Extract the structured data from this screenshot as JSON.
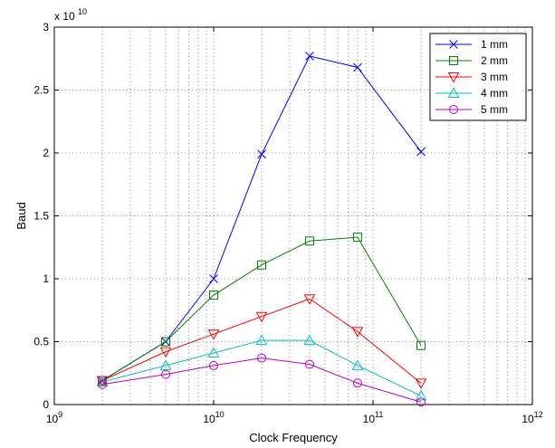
{
  "chart_data": {
    "type": "line",
    "title": "",
    "xlabel": "Clock Frequency",
    "ylabel": "Baud",
    "x_scale": "log",
    "y_multiplier_label": {
      "base": "x 10",
      "exponent": "10"
    },
    "xlim": [
      1000000000.0,
      1000000000000.0
    ],
    "ylim": [
      0,
      30000000000.0
    ],
    "x_ticks": [
      {
        "value": 1000000000.0,
        "base": "10",
        "exp": "9"
      },
      {
        "value": 10000000000.0,
        "base": "10",
        "exp": "10"
      },
      {
        "value": 100000000000.0,
        "base": "10",
        "exp": "11"
      },
      {
        "value": 1000000000000.0,
        "base": "10",
        "exp": "12"
      }
    ],
    "y_ticks": [
      {
        "value": 0,
        "label": "0"
      },
      {
        "value": 5000000000.0,
        "label": "0.5"
      },
      {
        "value": 10000000000.0,
        "label": "1"
      },
      {
        "value": 15000000000.0,
        "label": "1.5"
      },
      {
        "value": 20000000000.0,
        "label": "2"
      },
      {
        "value": 25000000000.0,
        "label": "2.5"
      },
      {
        "value": 30000000000.0,
        "label": "3"
      }
    ],
    "grid": true,
    "legend_position": "top-right",
    "x": [
      2000000000.0,
      5000000000.0,
      10000000000.0,
      20000000000.0,
      40000000000.0,
      80000000000.0,
      200000000000.0
    ],
    "series": [
      {
        "name": "1 mm",
        "color": "#0000ff",
        "marker": "x",
        "values": [
          1900000000.0,
          5000000000.0,
          10000000000.0,
          19900000000.0,
          27700000000.0,
          26800000000.0,
          20100000000.0
        ]
      },
      {
        "name": "2 mm",
        "color": "#008000",
        "marker": "square",
        "values": [
          1900000000.0,
          5000000000.0,
          8700000000.0,
          11100000000.0,
          13000000000.0,
          13300000000.0,
          4700000000.0
        ]
      },
      {
        "name": "3 mm",
        "color": "#ff0000",
        "marker": "triangle-down",
        "values": [
          1900000000.0,
          4200000000.0,
          5600000000.0,
          7000000000.0,
          8400000000.0,
          5800000000.0,
          1700000000.0
        ]
      },
      {
        "name": "4 mm",
        "color": "#00bfbf",
        "marker": "triangle-up",
        "values": [
          1800000000.0,
          3100000000.0,
          4100000000.0,
          5100000000.0,
          5100000000.0,
          3100000000.0,
          700000000.0
        ]
      },
      {
        "name": "5 mm",
        "color": "#bf00bf",
        "marker": "circle",
        "values": [
          1600000000.0,
          2400000000.0,
          3100000000.0,
          3700000000.0,
          3200000000.0,
          1700000000.0,
          200000000.0
        ]
      }
    ]
  }
}
